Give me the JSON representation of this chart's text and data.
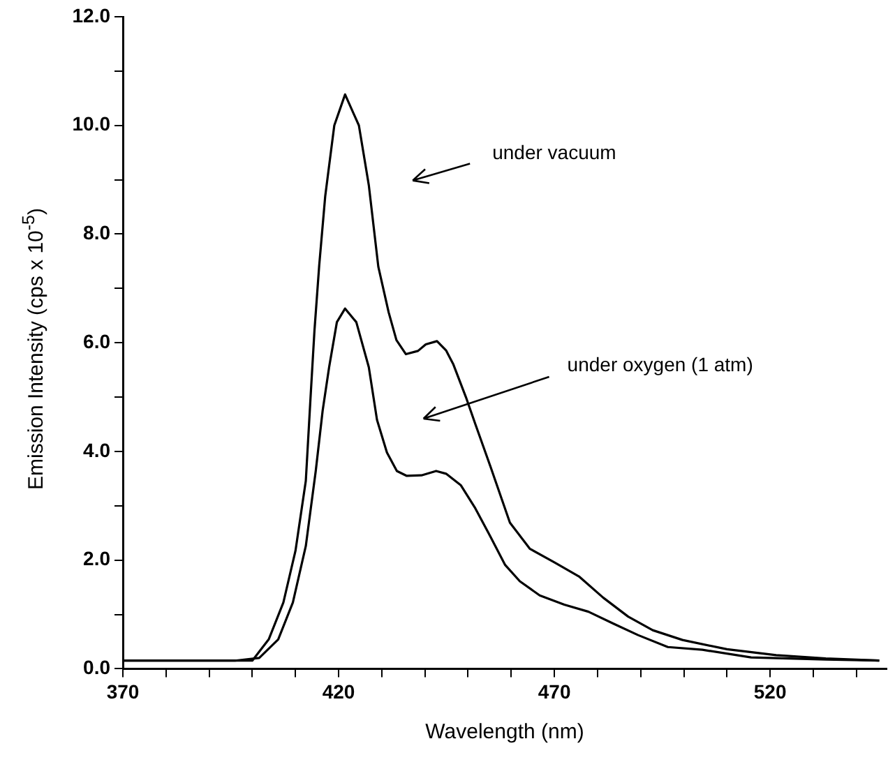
{
  "chart_data": {
    "type": "line",
    "xlabel": "Wavelength (nm)",
    "ylabel": "Emission Intensity (cps x 10$^{-5}$)",
    "xlim": [
      370,
      547
    ],
    "ylim": [
      0,
      12
    ],
    "xticks": [
      370,
      {
        "value": 380,
        "label": null
      },
      {
        "value": 390,
        "label": null
      },
      {
        "value": 400,
        "label": null
      },
      {
        "value": 410,
        "label": null
      },
      420,
      {
        "value": 430,
        "label": null
      },
      {
        "value": 440,
        "label": null
      },
      {
        "value": 450,
        "label": null
      },
      {
        "value": 460,
        "label": null
      },
      470,
      {
        "value": 480,
        "label": null
      },
      {
        "value": 490,
        "label": null
      },
      {
        "value": 500,
        "label": null
      },
      {
        "value": 510,
        "label": null
      },
      520,
      {
        "value": 530,
        "label": null
      },
      {
        "value": 540,
        "label": null
      }
    ],
    "yticks": [
      {
        "value": 0,
        "label": "0.0"
      },
      {
        "value": 1,
        "label": null
      },
      {
        "value": 2,
        "label": "2.0"
      },
      {
        "value": 3,
        "label": null
      },
      {
        "value": 4,
        "label": "4.0"
      },
      {
        "value": 5,
        "label": null
      },
      {
        "value": 6,
        "label": "6.0"
      },
      {
        "value": 7,
        "label": null
      },
      {
        "value": 8,
        "label": "8.0"
      },
      {
        "value": 9,
        "label": null
      },
      {
        "value": 10,
        "label": "10.0"
      },
      {
        "value": 11,
        "label": null
      },
      {
        "value": 12,
        "label": "12.0"
      }
    ],
    "marker": "none",
    "line_style": "solid",
    "series": [
      {
        "color": "#000000",
        "x": [
          370,
          380,
          390,
          396,
          400,
          403.8,
          407.2,
          410,
          412.4,
          413.5,
          414.4,
          415.5,
          416.9,
          419,
          421.5,
          424.7,
          427,
          429.2,
          431.6,
          433.4,
          435.6,
          438.4,
          440.2,
          442.8,
          444.9,
          446.6,
          449.5,
          451.7,
          455.2,
          459.7,
          464.3,
          470,
          475.7,
          481.3,
          487.1,
          492.8,
          499.7,
          510,
          521.4,
          532.9,
          545.3
        ],
        "values": [
          0.15,
          0.15,
          0.15,
          0.15,
          0.15,
          0.54,
          1.22,
          2.17,
          3.46,
          5.0,
          6.22,
          7.42,
          8.7,
          10.0,
          10.57,
          10.0,
          8.9,
          7.4,
          6.56,
          6.05,
          5.79,
          5.85,
          5.97,
          6.03,
          5.86,
          5.6,
          5.0,
          4.5,
          3.72,
          2.69,
          2.21,
          1.96,
          1.7,
          1.31,
          0.96,
          0.71,
          0.53,
          0.36,
          0.25,
          0.19,
          0.15
        ]
      },
      {
        "color": "#000000",
        "x": [
          370,
          380,
          390,
          396,
          401.6,
          406,
          409.4,
          412.4,
          414.7,
          416.3,
          417.8,
          419.6,
          421.5,
          424.1,
          427,
          428.9,
          431.2,
          433.5,
          435.8,
          439.2,
          442.6,
          444.9,
          448.3,
          451.7,
          455.2,
          458.6,
          462,
          466.6,
          472.3,
          477.9,
          483.7,
          489.4,
          496.3,
          504.3,
          515.6,
          532.9,
          545.3
        ],
        "values": [
          0.15,
          0.15,
          0.15,
          0.15,
          0.2,
          0.54,
          1.22,
          2.26,
          3.64,
          4.75,
          5.55,
          6.38,
          6.63,
          6.38,
          5.55,
          4.58,
          3.98,
          3.64,
          3.55,
          3.56,
          3.64,
          3.59,
          3.38,
          2.95,
          2.43,
          1.91,
          1.61,
          1.35,
          1.18,
          1.05,
          0.83,
          0.62,
          0.4,
          0.35,
          0.21,
          0.17,
          0.15
        ]
      }
    ],
    "annotations": [
      "under vacuum",
      "under oxygen (1 atm)"
    ]
  }
}
